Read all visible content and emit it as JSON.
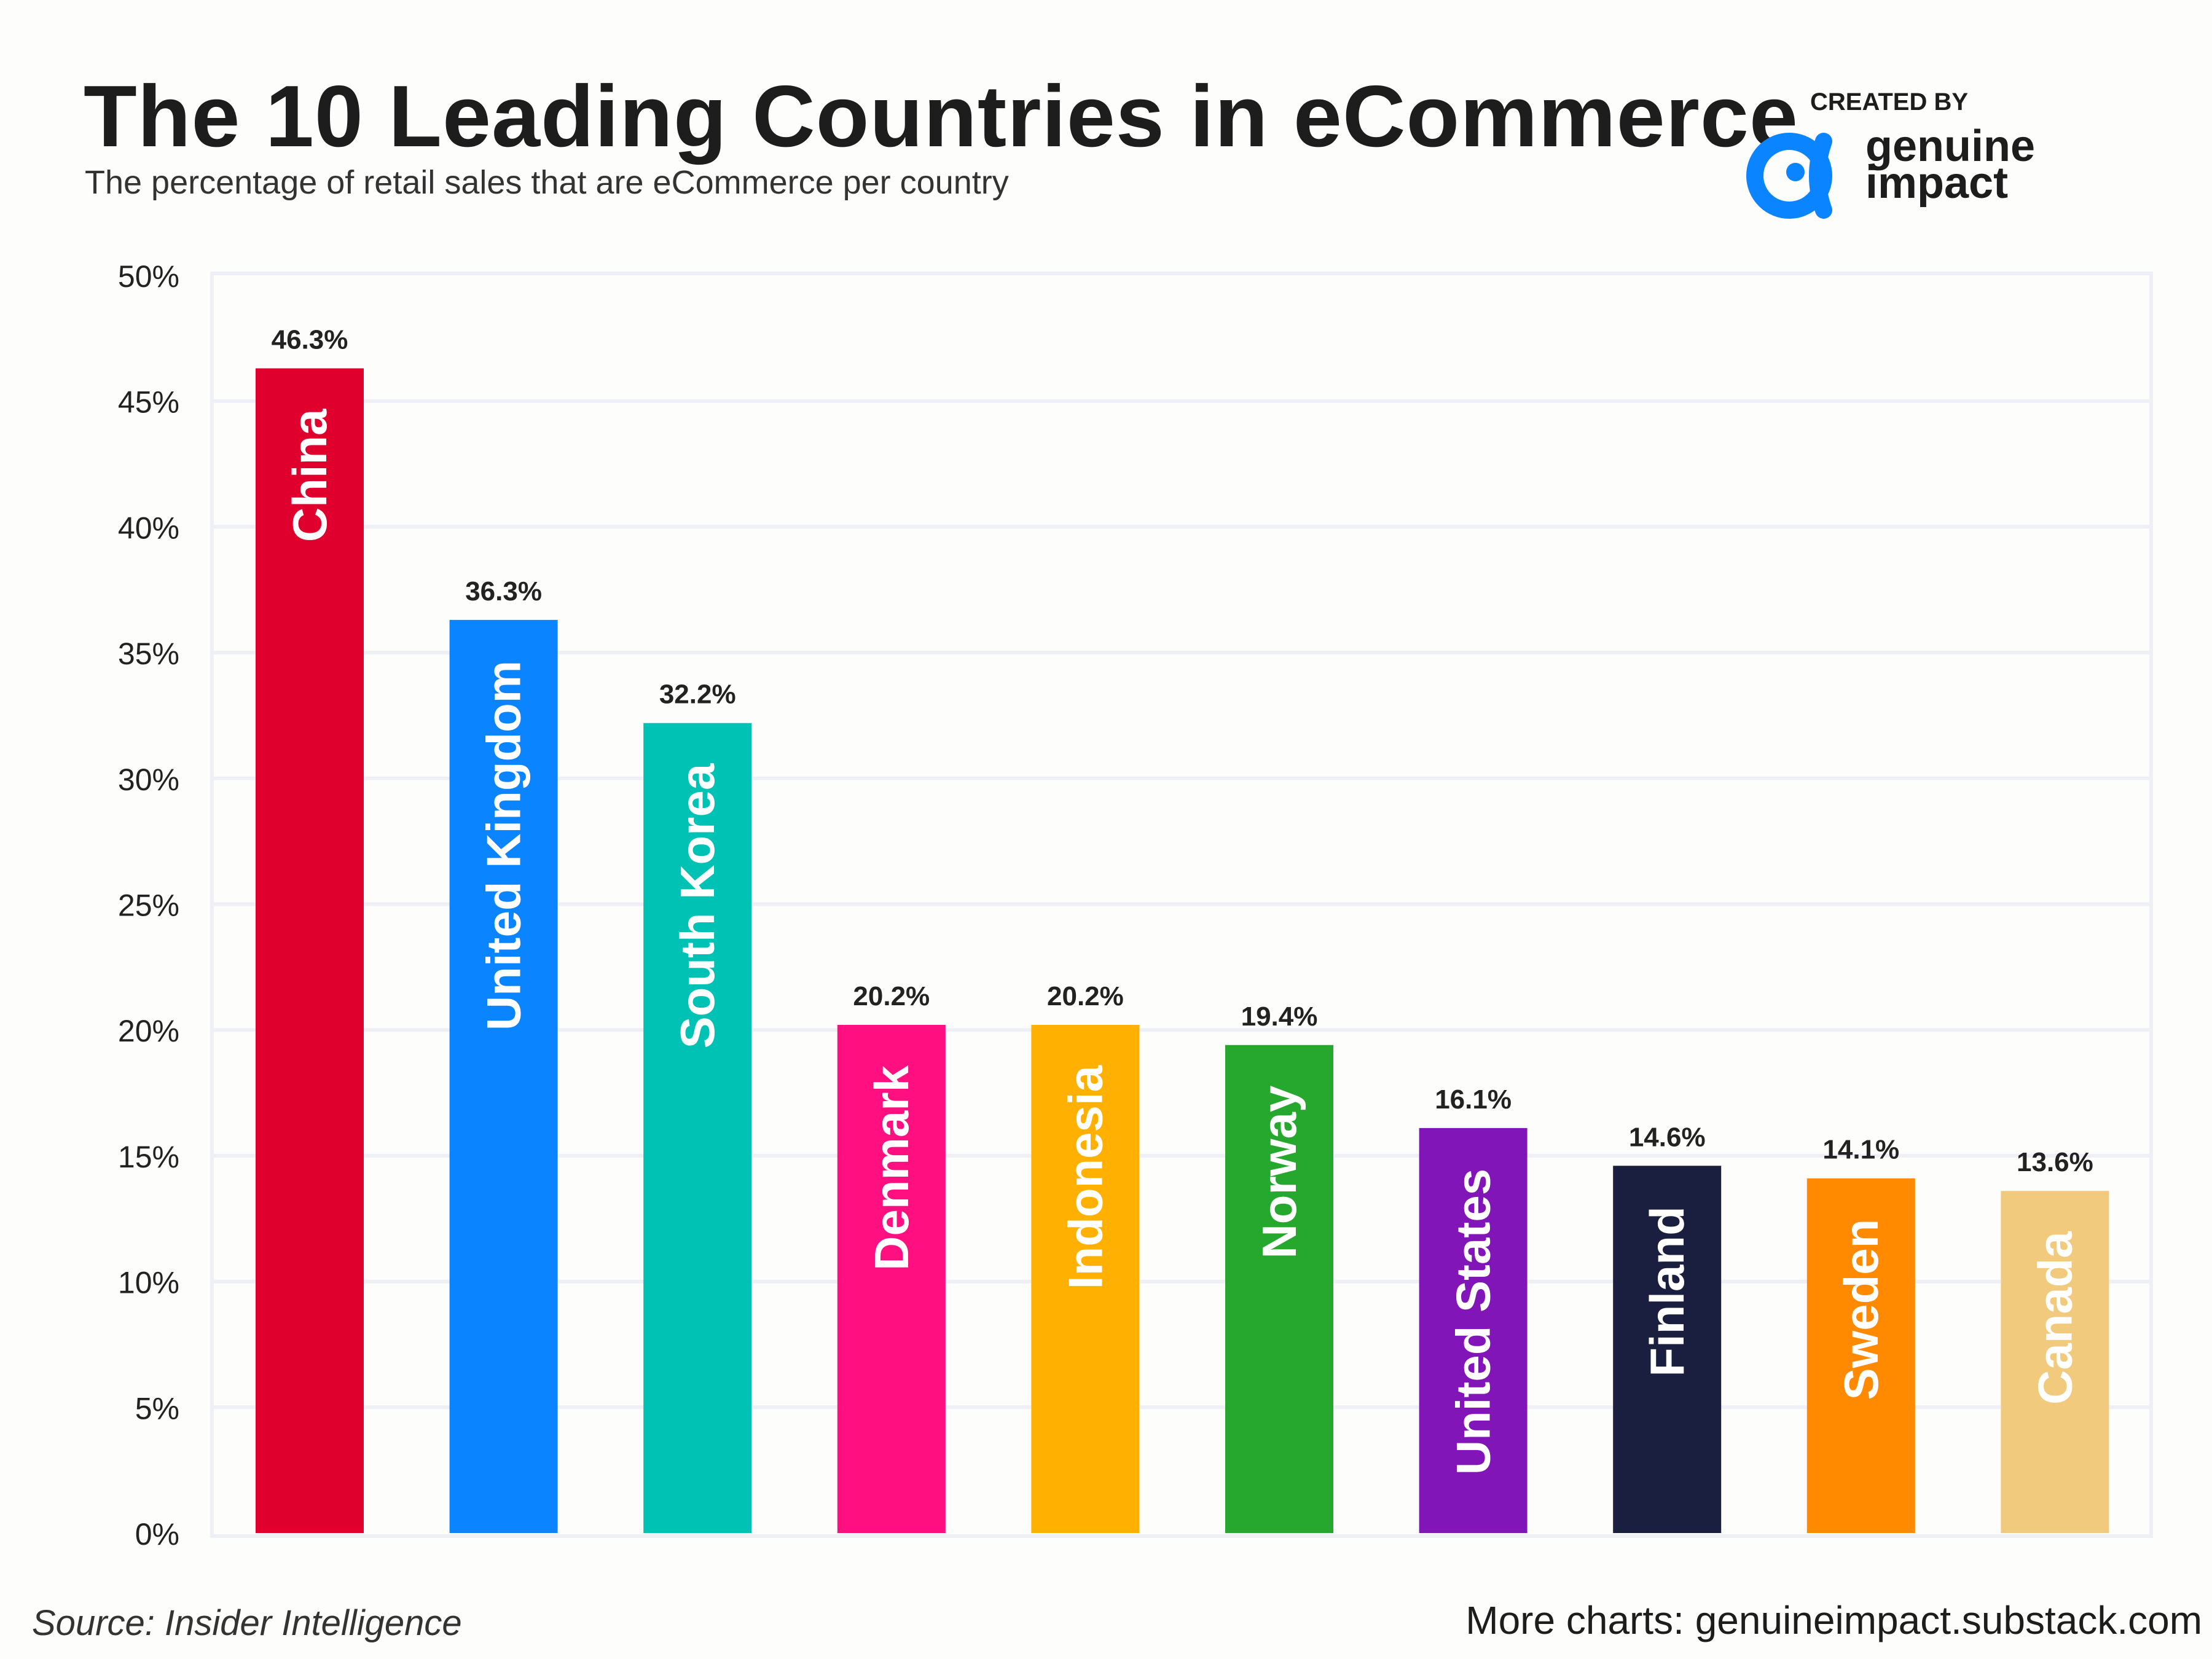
{
  "header": {
    "title": "The 10 Leading Countries in eCommerce",
    "subtitle": "The percentage of retail sales that are eCommerce per country"
  },
  "brand": {
    "created_by": "CREATED BY",
    "name_line1": "genuine",
    "name_line2": "impact",
    "color": "#0a84ff"
  },
  "footer": {
    "source": "Source: Insider Intelligence",
    "more": "More charts: genuineimpact.substack.com"
  },
  "chart_data": {
    "type": "bar",
    "title": "The 10 Leading Countries in eCommerce",
    "xlabel": "",
    "ylabel": "",
    "ylim": [
      0,
      50
    ],
    "yticks": [
      0,
      5,
      10,
      15,
      20,
      25,
      30,
      35,
      40,
      45,
      50
    ],
    "ytick_labels": [
      "0%",
      "5%",
      "10%",
      "15%",
      "20%",
      "25%",
      "30%",
      "35%",
      "40%",
      "45%",
      "50%"
    ],
    "grid": true,
    "categories": [
      "China",
      "United Kingdom",
      "South Korea",
      "Denmark",
      "Indonesia",
      "Norway",
      "United States",
      "Finland",
      "Sweden",
      "Canada"
    ],
    "values": [
      46.3,
      36.3,
      32.2,
      20.2,
      20.2,
      19.4,
      16.1,
      14.6,
      14.1,
      13.6
    ],
    "value_labels": [
      "46.3%",
      "36.3%",
      "32.2%",
      "20.2%",
      "20.2%",
      "19.4%",
      "16.1%",
      "14.6%",
      "14.1%",
      "13.6%"
    ],
    "colors": [
      "#e0002d",
      "#0a84ff",
      "#00c2b4",
      "#ff0f80",
      "#ffb000",
      "#26a82f",
      "#8215b8",
      "#1b1f3f",
      "#ff8a00",
      "#f1ca7e"
    ]
  }
}
